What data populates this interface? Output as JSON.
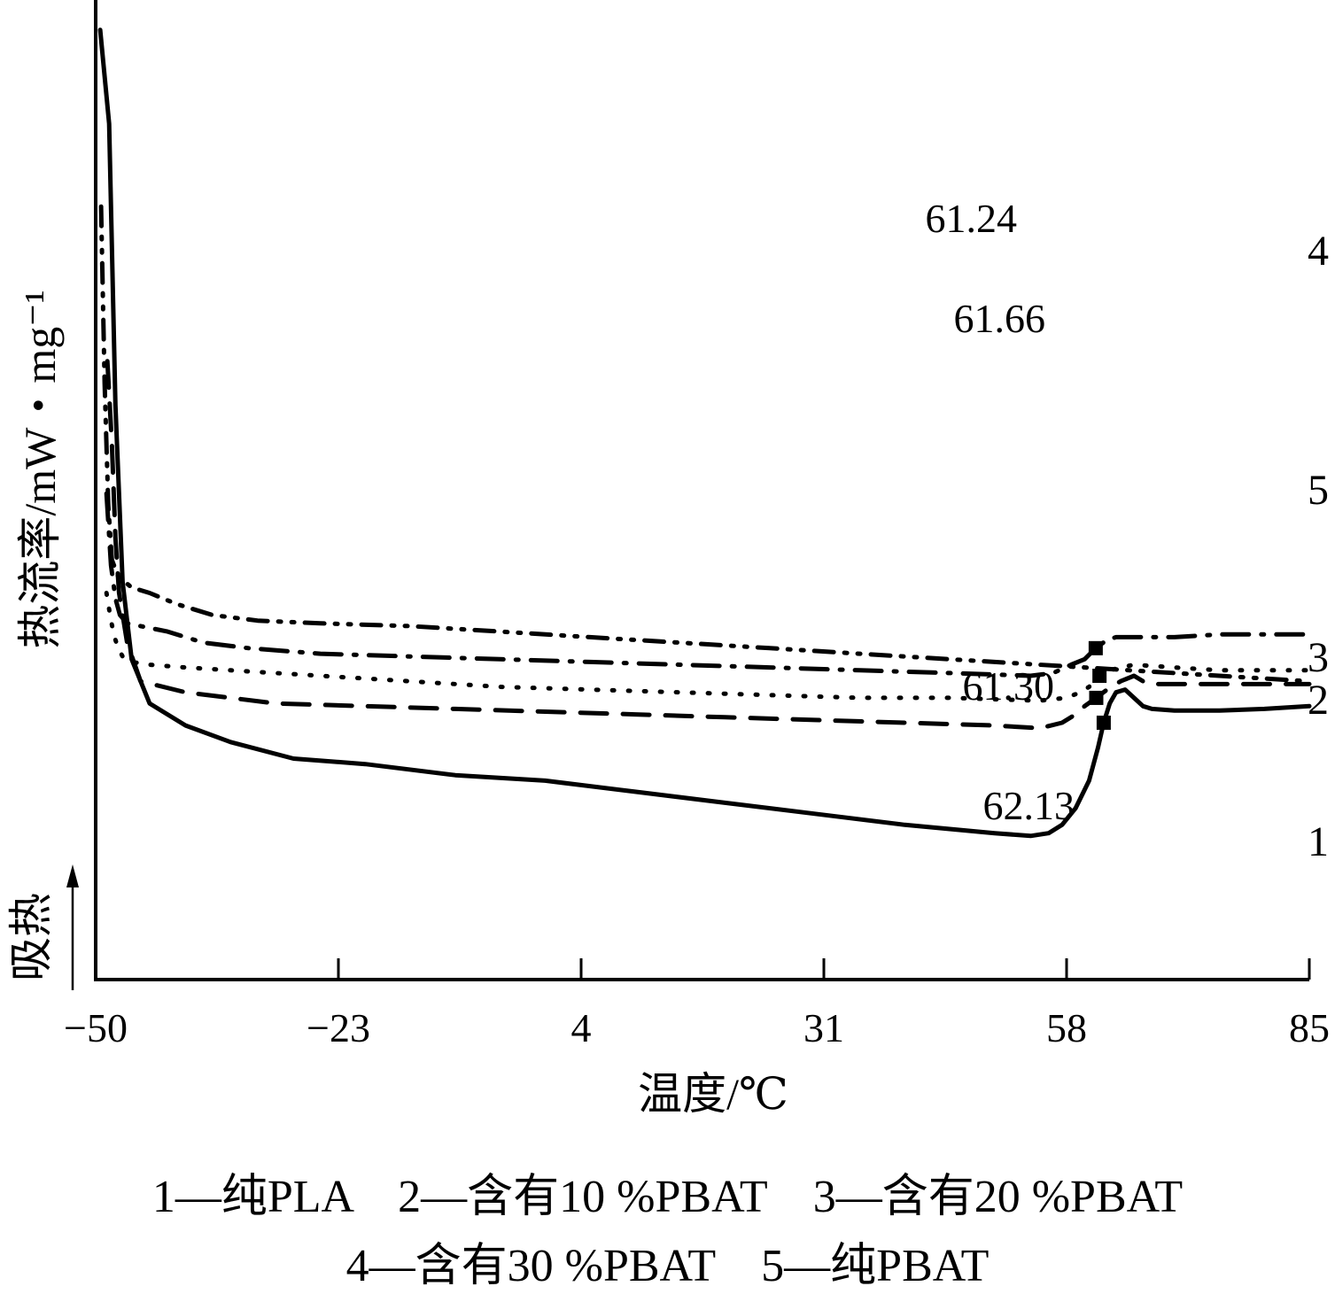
{
  "chart_data": {
    "type": "line",
    "xlabel": "温度/℃",
    "ylabel": "热流率/mW・mg⁻¹",
    "endotherm_label": "吸热",
    "x_ticks": [
      -50,
      -23,
      4,
      31,
      58,
      85
    ],
    "xlim": [
      -50,
      85
    ],
    "y_ticks_shown": false,
    "grid": false,
    "series": [
      {
        "name": "1",
        "style": "solid",
        "x": [
          -49.5,
          -48.5,
          -47.8,
          -47.0,
          -46.0,
          -44.0,
          -40.0,
          -35.0,
          -28.0,
          -20.0,
          -10.0,
          0.0,
          10.0,
          20.0,
          30.0,
          40.0,
          50.0,
          54.0,
          56.0,
          57.5,
          59.0,
          60.5,
          61.5,
          62.13,
          62.8,
          63.5,
          64.5,
          65.5,
          66.5,
          67.5,
          70.0,
          75.0,
          80.0,
          85.0
        ],
        "y": [
          -0.02,
          0.15,
          0.66,
          0.98,
          1.12,
          1.2,
          1.24,
          1.27,
          1.3,
          1.31,
          1.33,
          1.34,
          1.36,
          1.38,
          1.4,
          1.42,
          1.435,
          1.44,
          1.435,
          1.42,
          1.39,
          1.34,
          1.28,
          1.235,
          1.2,
          1.18,
          1.175,
          1.19,
          1.205,
          1.21,
          1.213,
          1.213,
          1.21,
          1.205
        ],
        "annotation": "62.13",
        "label": "1"
      },
      {
        "name": "2",
        "style": "dashed",
        "x": [
          -48.7,
          -48.2,
          -47.8,
          -47.4,
          -46.5,
          -45.0,
          -40.0,
          -35.0,
          -30.0,
          -20.0,
          -10.0,
          0.0,
          10.0,
          20.0,
          30.0,
          40.0,
          50.0,
          55.0,
          57.5,
          59.0,
          60.0,
          61.3,
          62.5,
          64.0,
          65.5,
          66.5,
          67.5,
          70.0,
          75.0,
          80.0,
          85.0
        ],
        "y": [
          0.58,
          0.73,
          0.9,
          1.0,
          1.09,
          1.16,
          1.18,
          1.19,
          1.2,
          1.205,
          1.21,
          1.215,
          1.22,
          1.225,
          1.23,
          1.235,
          1.24,
          1.245,
          1.235,
          1.22,
          1.205,
          1.19,
          1.175,
          1.16,
          1.15,
          1.16,
          1.165,
          1.165,
          1.165,
          1.165,
          1.165
        ],
        "annotation": "61.30",
        "label": "2"
      },
      {
        "name": "3",
        "style": "dotted",
        "x": [
          -48.8,
          -48.3,
          -47.9,
          -47.5,
          -47.0,
          -46.0,
          -44.0,
          -40.0,
          -35.0,
          -25.0,
          -15.0,
          -5.0,
          5.0,
          15.0,
          25.0,
          35.0,
          45.0,
          55.0,
          58.0,
          59.5,
          60.5,
          61.66,
          62.8,
          64.0,
          65.5,
          70.0,
          75.0,
          80.0,
          85.0
        ],
        "y": [
          1.0,
          1.05,
          1.08,
          1.1,
          1.115,
          1.125,
          1.13,
          1.135,
          1.14,
          1.15,
          1.16,
          1.17,
          1.175,
          1.18,
          1.185,
          1.19,
          1.19,
          1.195,
          1.19,
          1.18,
          1.17,
          1.15,
          1.14,
          1.135,
          1.13,
          1.135,
          1.14,
          1.14,
          1.14
        ],
        "annotation": "61.66",
        "label": "3"
      },
      {
        "name": "4",
        "style": "dash-dot",
        "x": [
          -48.8,
          -48.3,
          -47.8,
          -47.3,
          -46.5,
          -45.0,
          -42.0,
          -38.0,
          -33.0,
          -25.0,
          -15.0,
          -5.0,
          5.0,
          15.0,
          25.0,
          35.0,
          45.0,
          54.0,
          56.5,
          58.5,
          60.0,
          61.24,
          62.5,
          63.5,
          64.5,
          67.0,
          70.0,
          75.0,
          80.0,
          85.0
        ],
        "y": [
          0.82,
          0.95,
          1.01,
          1.04,
          1.055,
          1.06,
          1.07,
          1.09,
          1.1,
          1.11,
          1.115,
          1.12,
          1.125,
          1.13,
          1.135,
          1.14,
          1.145,
          1.15,
          1.145,
          1.13,
          1.12,
          1.1,
          1.085,
          1.08,
          1.08,
          1.08,
          1.08,
          1.075,
          1.075,
          1.075
        ],
        "annotation": "61.24",
        "label": "4"
      },
      {
        "name": "5",
        "style": "dash-dot-dot",
        "x": [
          -49.4,
          -49.0,
          -48.6,
          -48.2,
          -47.5,
          -46.0,
          -44.0,
          -41.0,
          -37.0,
          -32.0,
          -25.0,
          -15.0,
          -5.0,
          5.0,
          15.0,
          25.0,
          35.0,
          45.0,
          55.0,
          60.0,
          65.0,
          70.0,
          75.0,
          80.0,
          85.0
        ],
        "y": [
          0.3,
          0.62,
          0.84,
          0.94,
          0.97,
          0.99,
          1.0,
          1.02,
          1.04,
          1.05,
          1.055,
          1.06,
          1.07,
          1.08,
          1.09,
          1.1,
          1.11,
          1.12,
          1.13,
          1.135,
          1.14,
          1.145,
          1.15,
          1.155,
          1.16
        ],
        "annotation": "",
        "label": "5"
      }
    ],
    "legend_lines": [
      "1—纯PLA　2—含有10 %PBAT　3—含有20 %PBAT",
      "4—含有30 %PBAT　5—纯PBAT"
    ]
  }
}
